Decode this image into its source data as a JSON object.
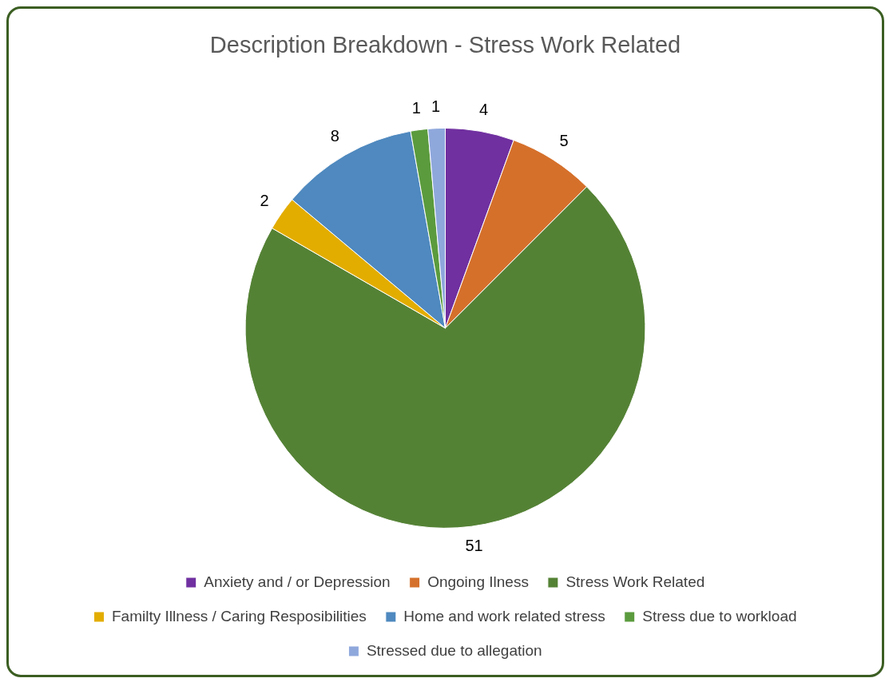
{
  "chart_data": {
    "type": "pie",
    "title": "Description Breakdown - Stress Work Related",
    "categories": [
      "Anxiety and / or Depression",
      "Ongoing Ilness",
      "Stress Work Related",
      "Familty Illness / Caring Resposibilities",
      "Home and work related stress",
      "Stress due to workload",
      "Stressed due to allegation"
    ],
    "values": [
      4,
      5,
      51,
      2,
      8,
      1,
      1
    ],
    "colors": [
      "#7030a0",
      "#d5702b",
      "#548235",
      "#e3ad00",
      "#4f89bf",
      "#5b9b3e",
      "#8fa8dc"
    ],
    "data_labels": true,
    "legend": "bottom"
  }
}
